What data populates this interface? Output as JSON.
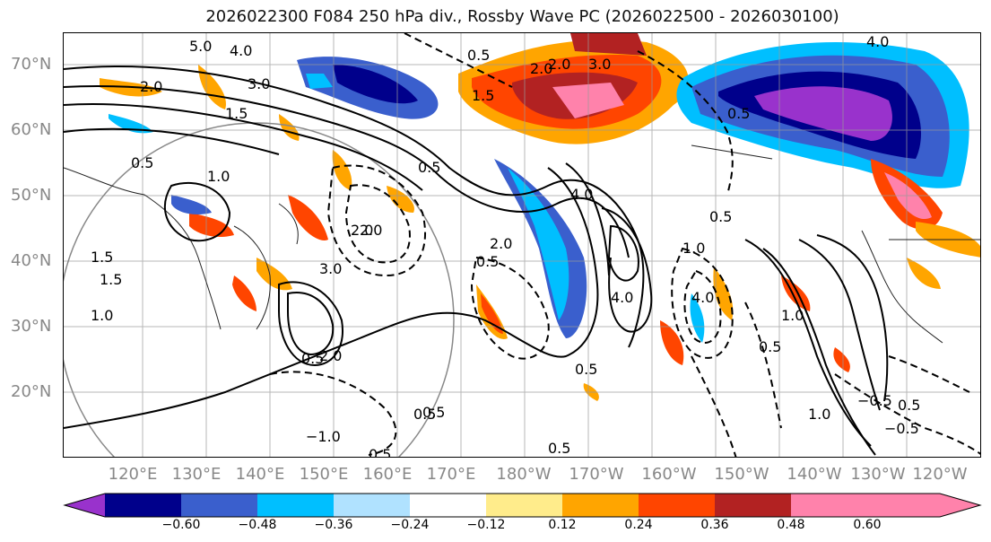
{
  "title": "2026022300 F084 250 hPa div., Rossby Wave PC (2026022500 - 2026030100)",
  "lat_labels": [
    "70°N",
    "60°N",
    "50°N",
    "40°N",
    "30°N",
    "20°N"
  ],
  "lon_labels": [
    "120°E",
    "130°E",
    "140°E",
    "150°E",
    "160°E",
    "170°E",
    "180°W",
    "170°W",
    "160°W",
    "150°W",
    "140°W",
    "130°W",
    "120°W"
  ],
  "colorbar": {
    "colors": [
      "#9932CC",
      "#00008B",
      "#3A5FCD",
      "#00BFFF",
      "#B0E2FF",
      "#FFFFFF",
      "#FFEC8B",
      "#FFA500",
      "#FF4500",
      "#B22222",
      "#FF82AB"
    ],
    "tick_labels": [
      "−0.60",
      "−0.48",
      "−0.36",
      "−0.24",
      "−0.12",
      "0.12",
      "0.24",
      "0.36",
      "0.48",
      "0.60"
    ]
  },
  "contour_labels": [
    "5.0",
    "4.0",
    "3.0",
    "2.0",
    "1.5",
    "0.5",
    "1.0",
    "2.0",
    "3.0",
    "0.5",
    "2.0",
    "0.5",
    "1.5",
    "2.0",
    "3.0",
    "4.0",
    "0.5",
    "2.0",
    "4.0",
    "1.0",
    "0.5",
    "4.0",
    "1.0",
    "0.5",
    "0.5",
    "−1.0",
    "0.5",
    "0.5",
    "−0.5",
    "4.0",
    "2.0",
    "0.5",
    "1.5",
    "1.0",
    "0.5",
    "−0.5",
    "0.5",
    "1.0",
    "0.5",
    "0.5",
    "2.0",
    "1.5"
  ]
}
